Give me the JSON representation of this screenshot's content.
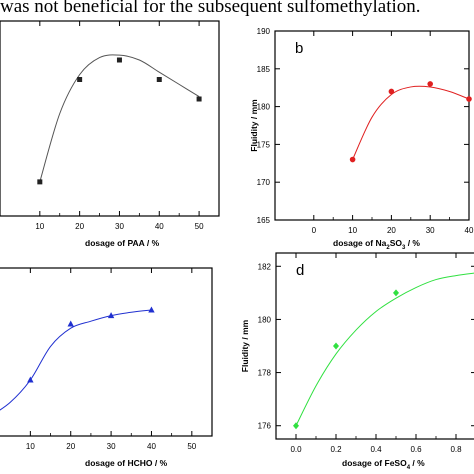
{
  "caption": "was not beneficial for the subsequent sulfomethylation.",
  "chart_data": [
    {
      "type": "scatter",
      "panel_label": "",
      "xlabel": "dosage of PAA / %",
      "ylabel": "",
      "xlim": [
        0,
        55
      ],
      "ylim": [
        156,
        196
      ],
      "x_ticks": [
        10,
        20,
        30,
        40,
        50
      ],
      "y_ticks": [],
      "color": "#222222",
      "marker": "square",
      "series": [
        {
          "x": [
            10,
            20,
            30,
            40,
            50
          ],
          "y": [
            163,
            184,
            188,
            184,
            180
          ]
        }
      ],
      "curve": [
        [
          10,
          163
        ],
        [
          15,
          177
        ],
        [
          20,
          185
        ],
        [
          25,
          188.5
        ],
        [
          30,
          189
        ],
        [
          35,
          188
        ],
        [
          40,
          185.5
        ],
        [
          45,
          183
        ],
        [
          50,
          180.5
        ]
      ]
    },
    {
      "type": "scatter",
      "panel_label": "b",
      "xlabel": "dosage of Na2SO3 / %",
      "xlabel_main": "dosage of Na",
      "xlabel_sub": "2",
      "xlabel_mid": "SO",
      "xlabel_sub2": "3",
      "xlabel_end": " / %",
      "ylabel": "Fluidity / mm",
      "xlim": [
        -10,
        40
      ],
      "ylim": [
        165,
        190
      ],
      "x_ticks": [
        0,
        10,
        20,
        30,
        40
      ],
      "y_ticks": [
        165,
        170,
        175,
        180,
        185,
        190
      ],
      "color": "#e02020",
      "marker": "circle",
      "series": [
        {
          "x": [
            10,
            20,
            30,
            40
          ],
          "y": [
            173,
            182,
            183,
            181
          ]
        }
      ],
      "curve": [
        [
          10,
          173
        ],
        [
          15,
          178.6
        ],
        [
          20,
          181.6
        ],
        [
          25,
          182.6
        ],
        [
          30,
          182.6
        ],
        [
          35,
          182
        ],
        [
          40,
          181
        ]
      ]
    },
    {
      "type": "scatter",
      "panel_label": "",
      "xlabel": "dosage of HCHO / %",
      "ylabel": "",
      "xlim": [
        0,
        55
      ],
      "ylim": [
        140,
        200
      ],
      "x_ticks": [
        10,
        20,
        30,
        40,
        50
      ],
      "y_ticks": [],
      "color": "#2030d0",
      "marker": "triangle",
      "series": [
        {
          "x": [
            10,
            20,
            30,
            40
          ],
          "y": [
            160,
            180,
            183,
            185
          ]
        }
      ],
      "curve": [
        [
          0,
          147
        ],
        [
          5,
          152
        ],
        [
          10,
          160
        ],
        [
          15,
          172
        ],
        [
          20,
          178.5
        ],
        [
          25,
          181
        ],
        [
          30,
          183
        ],
        [
          35,
          184.2
        ],
        [
          40,
          185
        ]
      ]
    },
    {
      "type": "scatter",
      "panel_label": "d",
      "xlabel": "dosage of FeSO4 / %",
      "xlabel_main": "dosage of FeSO",
      "xlabel_sub": "4",
      "xlabel_end": " / %",
      "ylabel": "Fluidity / mm",
      "xlim": [
        -0.1,
        0.9
      ],
      "ylim": [
        175.5,
        182.5
      ],
      "x_ticks": [
        0.0,
        0.2,
        0.4,
        0.6,
        0.8
      ],
      "x_tick_labels": [
        "0.0",
        "0.2",
        "0.4",
        "0.6",
        "0.8"
      ],
      "y_ticks": [
        176,
        178,
        180,
        182
      ],
      "color": "#30e040",
      "marker": "diamond",
      "series": [
        {
          "x": [
            0.0,
            0.2,
            0.5
          ],
          "y": [
            176,
            179,
            181
          ]
        }
      ],
      "curve": [
        [
          0.0,
          176
        ],
        [
          0.1,
          177.5
        ],
        [
          0.2,
          178.7
        ],
        [
          0.3,
          179.6
        ],
        [
          0.4,
          180.3
        ],
        [
          0.5,
          180.8
        ],
        [
          0.6,
          181.2
        ],
        [
          0.7,
          181.5
        ],
        [
          0.8,
          181.65
        ],
        [
          0.9,
          181.75
        ]
      ]
    }
  ]
}
